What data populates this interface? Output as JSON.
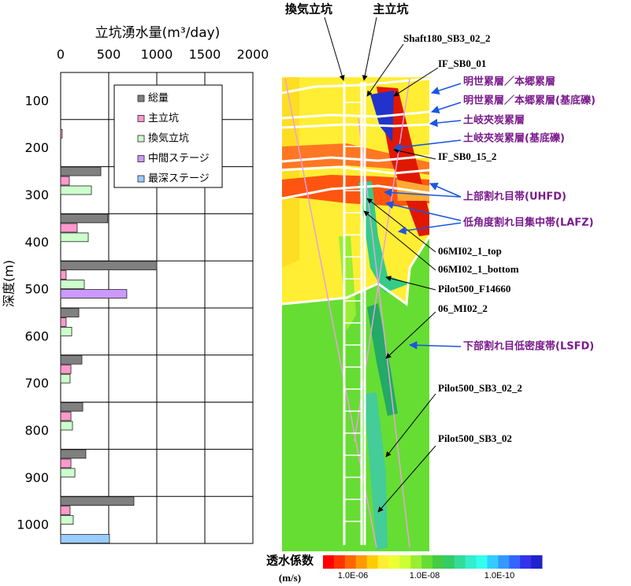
{
  "chart_data": {
    "type": "hbar_grouped",
    "title": "立坑湧水量(m³/day)",
    "y_label": "深度(m)",
    "categories": [
      "100",
      "200",
      "300",
      "400",
      "500",
      "600",
      "700",
      "800",
      "900",
      "1000"
    ],
    "xlim": [
      0,
      2000
    ],
    "xticks": [
      0,
      500,
      1000,
      1500,
      2000
    ],
    "grid": true,
    "series": [
      {
        "name": "総量",
        "color": "#808080",
        "label_color": "#000000",
        "values": [
          null,
          null,
          418,
          490,
          1000,
          189,
          221,
          230,
          262,
          762
        ]
      },
      {
        "name": "主立坑",
        "color": "#ff99cc",
        "label_color": "#ff0000",
        "values": [
          null,
          16,
          90,
          172,
          57,
          57,
          107,
          107,
          107,
          98
        ]
      },
      {
        "name": "換気立坑",
        "color": "#ccffcc",
        "label_color": "#008000",
        "values": [
          null,
          null,
          320,
          287,
          246,
          115,
          98,
          123,
          148,
          131
        ]
      },
      {
        "name": "中間ステージ",
        "color": "#cc99ff",
        "label_color": "#7030a0",
        "values": [
          null,
          null,
          null,
          null,
          688,
          null,
          null,
          null,
          null,
          null
        ]
      },
      {
        "name": "最深ステージ",
        "color": "#99ccff",
        "label_color": "#0000ff",
        "values": [
          null,
          null,
          null,
          null,
          null,
          null,
          null,
          null,
          null,
          508
        ]
      }
    ]
  },
  "section": {
    "shafts": [
      "換気立坑",
      "主立坑"
    ],
    "boreholes": [
      "Shaft180_SB3_02_2",
      "IF_SB0_01",
      "IF_SB0_15_2",
      "06MI02_1_top",
      "06MI02_1_bottom",
      "Pilot500_F14660",
      "06_MI02_2",
      "Pilot500_SB3_02_2",
      "Pilot500_SB3_02"
    ],
    "layers": [
      "明世累層／本郷累層",
      "明世累層／本郷累層(基底礫)",
      "土岐夾炭累層",
      "土岐夾炭累層(基底礫)",
      "上部割れ目帯(UHFD)",
      "低角度割れ目集中帯(LAFZ)",
      "下部割れ目低密度帯(LSFD)"
    ],
    "colorbar": {
      "title": "透水係数",
      "unit": "(m/s)",
      "labels": [
        "1.0E-06",
        "1.0E-08",
        "1.0E-10"
      ]
    }
  }
}
